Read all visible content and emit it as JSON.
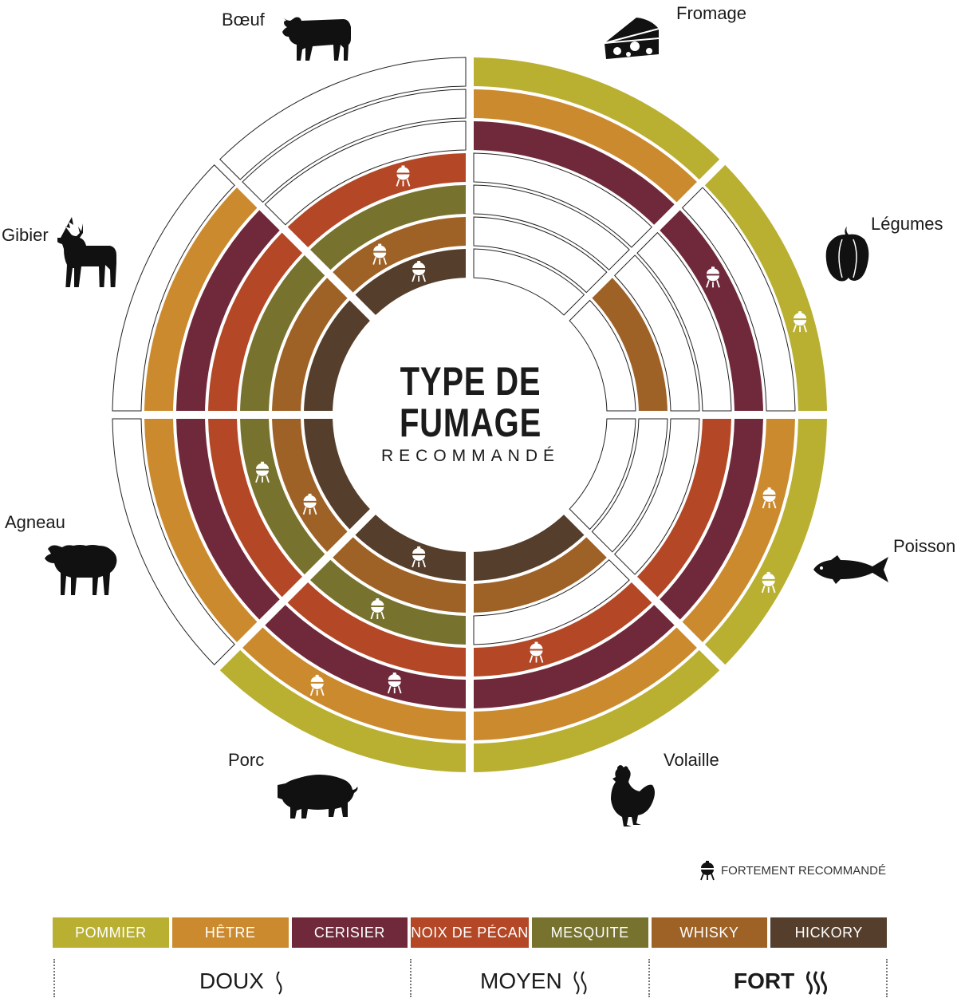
{
  "title": {
    "line1": "TYPE DE",
    "line2": "FUMAGE",
    "subtitle": "RECOMMANDÉ"
  },
  "woods": [
    {
      "name": "POMMIER",
      "color": "#b9b032"
    },
    {
      "name": "HÊTRE",
      "color": "#cc8a2e"
    },
    {
      "name": "CERISIER",
      "color": "#70293b"
    },
    {
      "name": "NOIX DE PÉCAN",
      "color": "#b34726"
    },
    {
      "name": "MESQUITE",
      "color": "#77732e"
    },
    {
      "name": "WHISKY",
      "color": "#9e6227"
    },
    {
      "name": "HICKORY",
      "color": "#553e2c"
    }
  ],
  "foods": [
    {
      "name": "Fromage",
      "icon": "cheese-icon",
      "woods": [
        "POMMIER",
        "HÊTRE",
        "CERISIER"
      ],
      "strongly_recommended": []
    },
    {
      "name": "Légumes",
      "icon": "bell-pepper-icon",
      "woods": [
        "POMMIER",
        "CERISIER",
        "WHISKY"
      ],
      "strongly_recommended": [
        "POMMIER",
        "CERISIER"
      ]
    },
    {
      "name": "Poisson",
      "icon": "fish-icon",
      "woods": [
        "POMMIER",
        "HÊTRE",
        "CERISIER",
        "NOIX DE PÉCAN"
      ],
      "strongly_recommended": [
        "POMMIER",
        "HÊTRE"
      ]
    },
    {
      "name": "Volaille",
      "icon": "chicken-icon",
      "woods": [
        "POMMIER",
        "HÊTRE",
        "CERISIER",
        "NOIX DE PÉCAN",
        "WHISKY",
        "HICKORY"
      ],
      "strongly_recommended": [
        "NOIX DE PÉCAN"
      ]
    },
    {
      "name": "Porc",
      "icon": "pig-icon",
      "woods": [
        "POMMIER",
        "HÊTRE",
        "CERISIER",
        "NOIX DE PÉCAN",
        "MESQUITE",
        "WHISKY",
        "HICKORY"
      ],
      "strongly_recommended": [
        "HÊTRE",
        "CERISIER",
        "MESQUITE",
        "HICKORY"
      ]
    },
    {
      "name": "Agneau",
      "icon": "sheep-icon",
      "woods": [
        "HÊTRE",
        "CERISIER",
        "NOIX DE PÉCAN",
        "MESQUITE",
        "WHISKY",
        "HICKORY"
      ],
      "strongly_recommended": [
        "MESQUITE",
        "WHISKY"
      ]
    },
    {
      "name": "Gibier",
      "icon": "deer-icon",
      "woods": [
        "HÊTRE",
        "CERISIER",
        "NOIX DE PÉCAN",
        "MESQUITE",
        "WHISKY",
        "HICKORY"
      ],
      "strongly_recommended": []
    },
    {
      "name": "Bœuf",
      "icon": "cow-icon",
      "woods": [
        "NOIX DE PÉCAN",
        "MESQUITE",
        "WHISKY",
        "HICKORY"
      ],
      "strongly_recommended": [
        "NOIX DE PÉCAN",
        "WHISKY",
        "HICKORY"
      ]
    }
  ],
  "legend_note": "FORTEMENT RECOMMANDÉ",
  "note_icon": "kettle-grill-icon",
  "intensity": {
    "mild": "DOUX",
    "medium": "MOYEN",
    "strong": "FORT"
  }
}
